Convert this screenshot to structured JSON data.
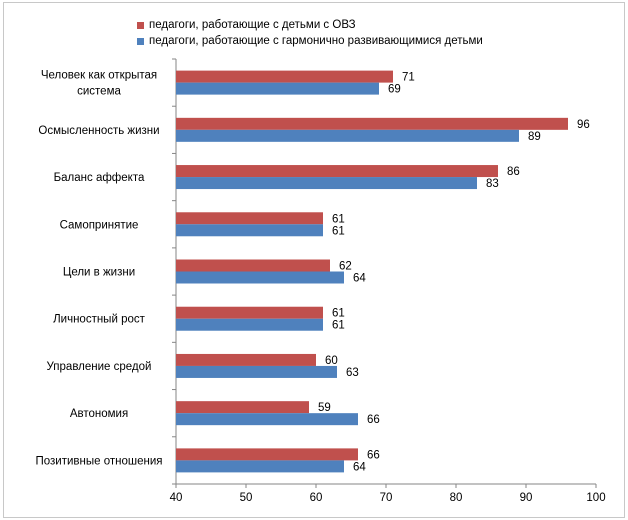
{
  "chart_data": {
    "type": "bar",
    "orientation": "horizontal",
    "categories": [
      [
        "Человек как открытая",
        "система"
      ],
      [
        "Осмысленность жизни"
      ],
      [
        "Баланс аффекта"
      ],
      [
        "Самопринятие"
      ],
      [
        "Цели в жизни"
      ],
      [
        "Личностный рост"
      ],
      [
        "Управление средой"
      ],
      [
        "Автономия"
      ],
      [
        "Позитивные отношения"
      ]
    ],
    "series": [
      {
        "name": "педагоги, работающие с детьми с ОВЗ",
        "color": "#c0504d",
        "values": [
          71,
          96,
          86,
          61,
          62,
          61,
          60,
          59,
          66
        ]
      },
      {
        "name": "педагоги, работающие с гармонично развивающимися детьми",
        "color": "#4f81bd",
        "values": [
          69,
          89,
          83,
          61,
          64,
          61,
          63,
          66,
          64
        ]
      }
    ],
    "xlim": [
      40,
      100
    ],
    "xticks": [
      40,
      50,
      60,
      70,
      80,
      90,
      100
    ],
    "legend_position": "top",
    "grid": false
  }
}
